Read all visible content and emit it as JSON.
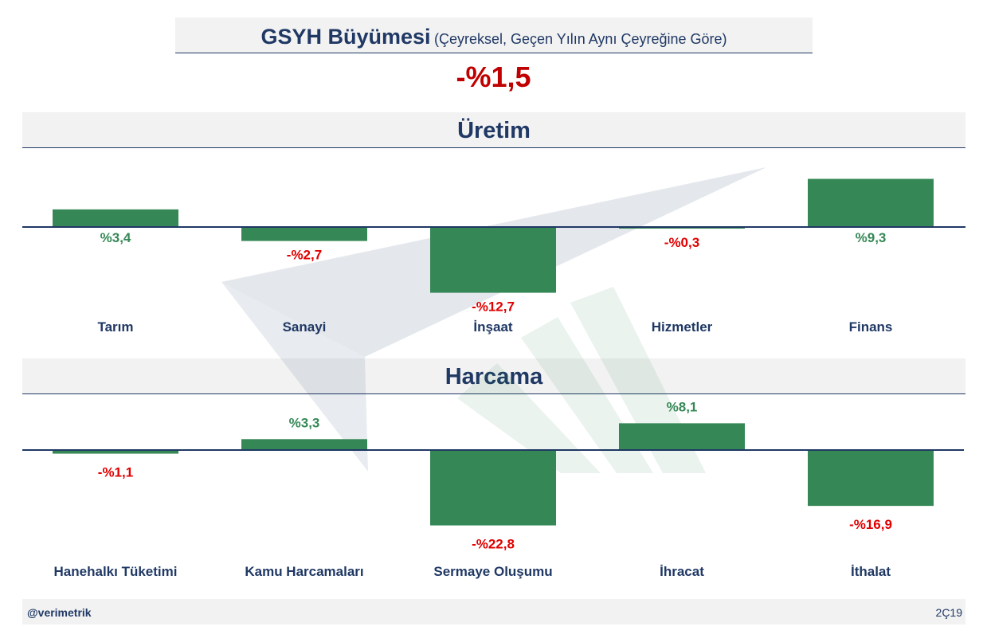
{
  "header": {
    "title": "GSYH Büyümesi",
    "subtitle": "(Çeyreksel, Geçen Yılın Aynı Çeyreğine Göre)",
    "headline_value": "-%1,5"
  },
  "colors": {
    "bar": "#358856",
    "positive_label": "#358856",
    "negative_label": "#e00000",
    "navy": "#1f3864",
    "band": "#f2f2f2"
  },
  "chart_data": [
    {
      "type": "bar",
      "title": "Üretim",
      "categories": [
        "Tarım",
        "Sanayi",
        "İnşaat",
        "Hizmetler",
        "Finans"
      ],
      "values": [
        3.4,
        -2.7,
        -12.7,
        -0.3,
        9.3
      ],
      "value_labels": [
        "%3,4",
        "-%2,7",
        "-%12,7",
        "-%0,3",
        "%9,3"
      ]
    },
    {
      "type": "bar",
      "title": "Harcama",
      "categories": [
        "Hanehalkı Tüketimi",
        "Kamu Harcamaları",
        "Sermaye Oluşumu",
        "İhracat",
        "İthalat"
      ],
      "values": [
        -1.1,
        3.3,
        -22.8,
        8.1,
        -16.9
      ],
      "value_labels": [
        "-%1,1",
        "%3,3",
        "-%22,8",
        "%8,1",
        "-%16,9"
      ]
    }
  ],
  "footer": {
    "handle": "@verimetrik",
    "period": "2Ç19"
  }
}
